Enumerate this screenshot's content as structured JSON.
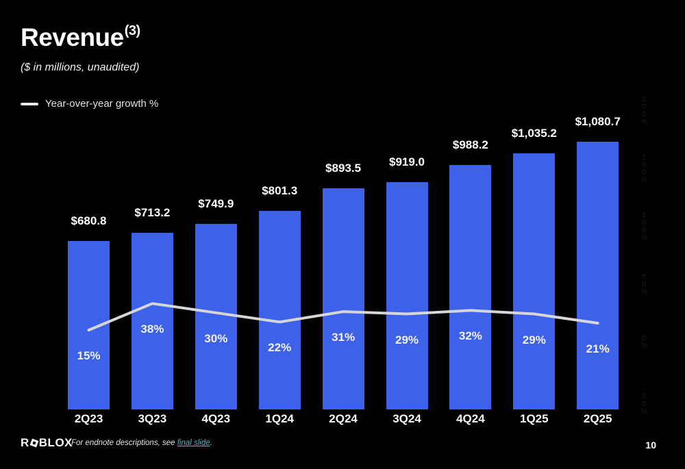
{
  "slide": {
    "title": "Revenue",
    "title_superscript": "(3)",
    "subtitle": "($ in millions, unaudited)",
    "page_number": "10"
  },
  "legend": {
    "label": "Year-over-year growth %"
  },
  "footer": {
    "logo_prefix": "R",
    "logo_suffix": "BLOX",
    "note_prefix": "For endnote descriptions, see ",
    "note_link": "final slide",
    "note_suffix": "."
  },
  "colors": {
    "background": "#000000",
    "bar": "#3d62e9",
    "line": "#d6d6d6",
    "label_text": "#ffffff",
    "link": "#4fb9c8",
    "right_axis_faint": "#1c1c1c"
  },
  "chart_data": {
    "type": "bar",
    "title": "Revenue ($ in millions, unaudited)",
    "categories": [
      "2Q23",
      "3Q23",
      "4Q23",
      "1Q24",
      "2Q24",
      "3Q24",
      "4Q24",
      "1Q25",
      "2Q25"
    ],
    "series": [
      {
        "name": "Revenue ($M)",
        "type": "bar",
        "values": [
          680.8,
          713.2,
          749.9,
          801.3,
          893.5,
          919.0,
          988.2,
          1035.2,
          1080.7
        ],
        "labels": [
          "$680.8",
          "$713.2",
          "$749.9",
          "$801.3",
          "$893.5",
          "$919.0",
          "$988.2",
          "$1,035.2",
          "$1,080.7"
        ]
      },
      {
        "name": "Year-over-year growth %",
        "type": "line",
        "values": [
          15,
          38,
          30,
          22,
          31,
          29,
          32,
          29,
          21
        ],
        "labels": [
          "15%",
          "38%",
          "30%",
          "22%",
          "31%",
          "29%",
          "32%",
          "29%",
          "21%"
        ]
      }
    ],
    "bar_axis_range": [
      0,
      1080.7
    ],
    "right_axis": {
      "ticks": [
        200,
        150,
        100,
        50,
        0,
        -50
      ],
      "labels": [
        "200%",
        "150%",
        "100%",
        "50%",
        "0%",
        "-50%"
      ]
    },
    "grid": false,
    "legend_position": "top-left"
  }
}
